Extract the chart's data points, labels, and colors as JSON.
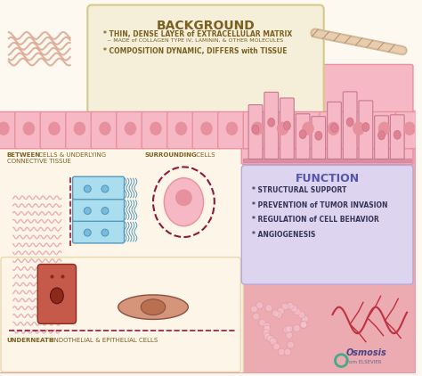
{
  "bg_color": "#fdf8f0",
  "title_bg": "#f5eed8",
  "title_text": "BACKGROUND",
  "title_color": "#7a6020",
  "bg_bullet1": "* THIN, DENSE LAYER of EXTRACELLULAR MATRIX",
  "bg_bullet2": "~ MADE of COLLAGEN TYPE IV, LAMININ, & OTHER MOLECULES",
  "bg_bullet3": "* COMPOSITION DYNAMIC, DIFFERS with TISSUE",
  "bullet_color": "#7a6020",
  "cell_color_light": "#f5b8c4",
  "cell_color_border": "#e8919e",
  "cell_nucleus": "#e8919e",
  "left_panel_bg": "#fdf5e8",
  "left_panel_label1": "BETWEEN CELLS & UNDERLYING\nCONNECTIVE TISSUE",
  "left_panel_label2": "SURROUNDING CELLS",
  "left_panel_label3": "UNDERNEATH ENDOTHELIAL & EPITHELIAL CELLS",
  "panel_label_bold": "#7a6020",
  "panel_label_color": "#7a6020",
  "right_top_tissue_color": "#f5b8c4",
  "function_bg": "#ddd5f0",
  "function_title": "FUNCTION",
  "function_title_color": "#5555aa",
  "function_bullets": [
    "* STRUCTURAL SUPPORT",
    "* PREVENTION of TUMOR INVASION",
    "* REGULATION of CELL BEHAVIOR",
    "* ANGIOGENESIS"
  ],
  "function_bullet_color": "#333355",
  "osmosis_color": "#444488",
  "dashed_line_color": "#8b1a3a",
  "connective_tissue_color": "#e8919e",
  "blue_cell_color": "#aaddee",
  "blue_cell_border": "#5599bb",
  "endothelial_color": "#c0705a",
  "epithelial_color": "#d4957a"
}
